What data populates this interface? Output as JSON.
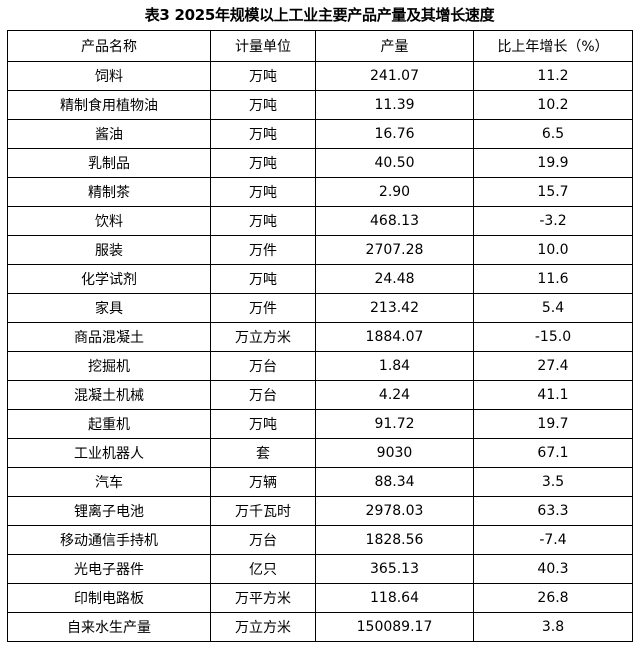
{
  "title": "表3 2025年规模以上工业主要产品产量及其增长速度",
  "columns": [
    "产品名称",
    "计量单位",
    "产量",
    "比上年增长（%）"
  ],
  "rows": [
    {
      "name": "饲料",
      "unit": "万吨",
      "output": "241.07",
      "growth": "11.2"
    },
    {
      "name": "精制食用植物油",
      "unit": "万吨",
      "output": "11.39",
      "growth": "10.2"
    },
    {
      "name": "酱油",
      "unit": "万吨",
      "output": "16.76",
      "growth": "6.5"
    },
    {
      "name": "乳制品",
      "unit": "万吨",
      "output": "40.50",
      "growth": "19.9"
    },
    {
      "name": "精制茶",
      "unit": "万吨",
      "output": "2.90",
      "growth": "15.7"
    },
    {
      "name": "饮料",
      "unit": "万吨",
      "output": "468.13",
      "growth": "-3.2"
    },
    {
      "name": "服装",
      "unit": "万件",
      "output": "2707.28",
      "growth": "10.0"
    },
    {
      "name": "化学试剂",
      "unit": "万吨",
      "output": "24.48",
      "growth": "11.6"
    },
    {
      "name": "家具",
      "unit": "万件",
      "output": "213.42",
      "growth": "5.4"
    },
    {
      "name": "商品混凝土",
      "unit": "万立方米",
      "output": "1884.07",
      "growth": "-15.0"
    },
    {
      "name": "挖掘机",
      "unit": "万台",
      "output": "1.84",
      "growth": "27.4"
    },
    {
      "name": "混凝土机械",
      "unit": "万台",
      "output": "4.24",
      "growth": "41.1"
    },
    {
      "name": "起重机",
      "unit": "万吨",
      "output": "91.72",
      "growth": "19.7"
    },
    {
      "name": "工业机器人",
      "unit": "套",
      "output": "9030",
      "growth": "67.1"
    },
    {
      "name": "汽车",
      "unit": "万辆",
      "output": "88.34",
      "growth": "3.5"
    },
    {
      "name": "锂离子电池",
      "unit": "万千瓦时",
      "output": "2978.03",
      "growth": "63.3"
    },
    {
      "name": "移动通信手持机",
      "unit": "万台",
      "output": "1828.56",
      "growth": "-7.4"
    },
    {
      "name": "光电子器件",
      "unit": "亿只",
      "output": "365.13",
      "growth": "40.3"
    },
    {
      "name": "印制电路板",
      "unit": "万平方米",
      "output": "118.64",
      "growth": "26.8"
    },
    {
      "name": "自来水生产量",
      "unit": "万立方米",
      "output": "150089.17",
      "growth": "3.8"
    }
  ]
}
